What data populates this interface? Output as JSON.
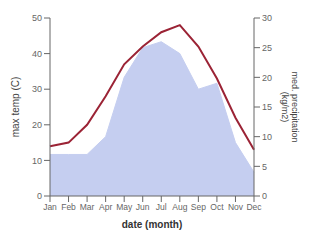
{
  "chart_data": {
    "type": "line",
    "xlabel": "date (month)",
    "ylabel": "max temp (C)",
    "y2label": "med. precipitation\n(kg/m2)",
    "categories": [
      "Jan",
      "Feb",
      "Mar",
      "Apr",
      "May",
      "Jun",
      "Jul",
      "Aug",
      "Sep",
      "Oct",
      "Nov",
      "Dec"
    ],
    "series": [
      {
        "type": "area",
        "axis": "y2",
        "color": "#c5cef0",
        "values": [
          7,
          7,
          7,
          10,
          20,
          25,
          26,
          24,
          18,
          19,
          9,
          4
        ]
      },
      {
        "type": "line",
        "axis": "y",
        "color": "#9b2335",
        "values": [
          14,
          15,
          20,
          28,
          37,
          42,
          46,
          48,
          42,
          33,
          22,
          13
        ]
      }
    ],
    "ylim": [
      0,
      50
    ],
    "yticks": [
      0,
      10,
      20,
      30,
      40,
      50
    ],
    "y2lim": [
      0,
      30
    ],
    "y2ticks": [
      0,
      5,
      10,
      15,
      20,
      25,
      30
    ],
    "grid": false
  }
}
